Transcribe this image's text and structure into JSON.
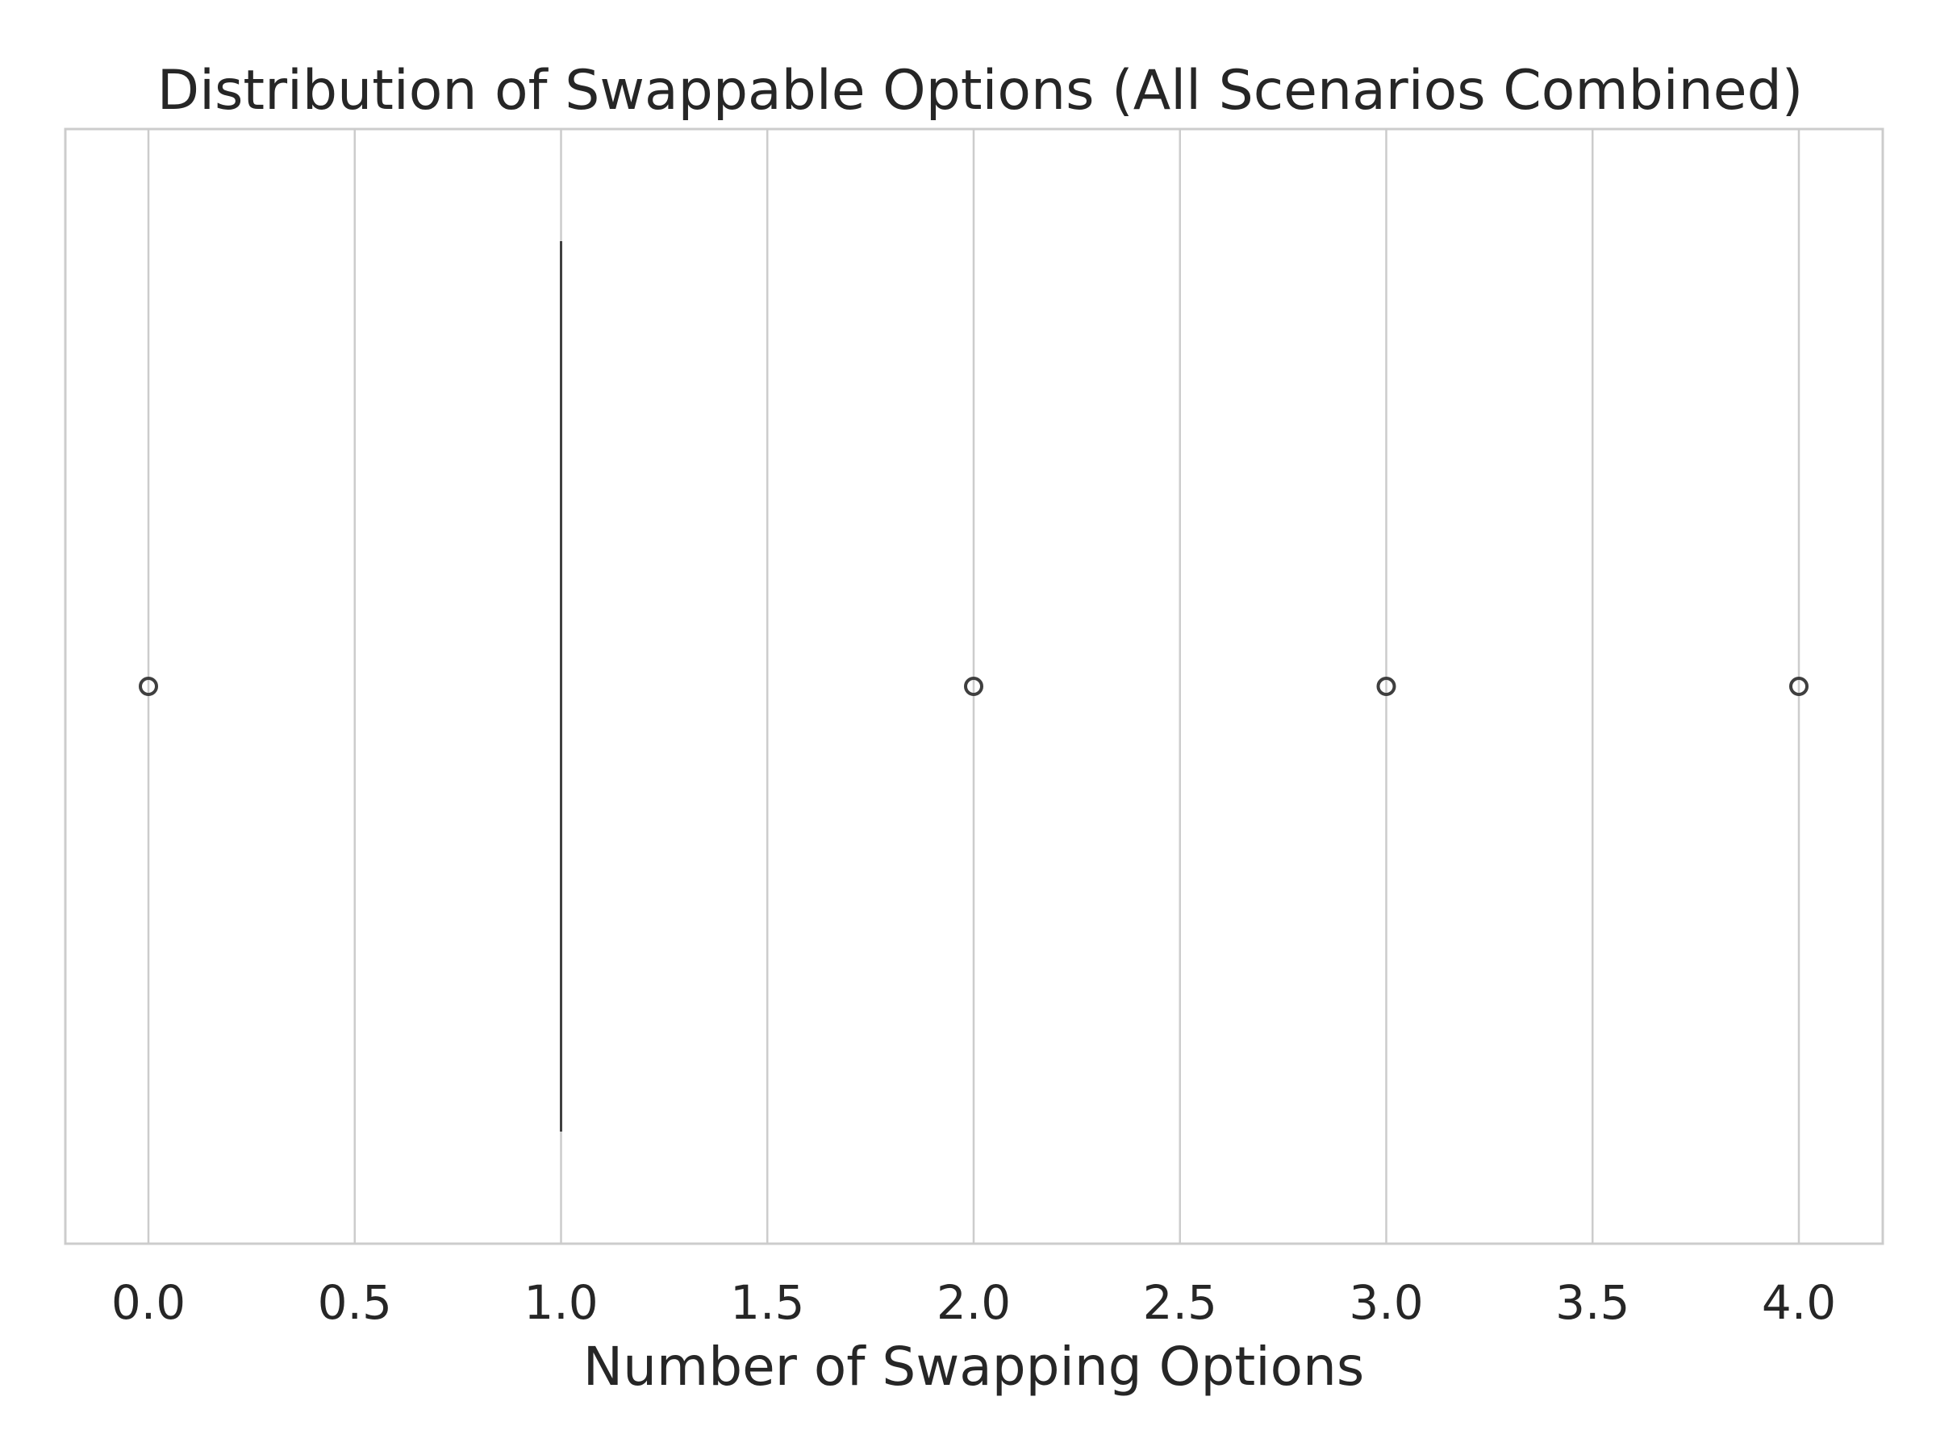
{
  "chart_data": {
    "type": "boxplot",
    "title": "Distribution of Swappable Options (All Scenarios Combined)",
    "xlabel": "Number of Swapping Options",
    "ylabel": "",
    "xlim": [
      -0.2,
      4.2
    ],
    "x_ticks": [
      0.0,
      0.5,
      1.0,
      1.5,
      2.0,
      2.5,
      3.0,
      3.5,
      4.0
    ],
    "x_tick_labels": [
      "0.0",
      "0.5",
      "1.0",
      "1.5",
      "2.0",
      "2.5",
      "3.0",
      "3.5",
      "4.0"
    ],
    "orientation": "horizontal",
    "grid": "vertical",
    "box": {
      "q1": 1.0,
      "median": 1.0,
      "q3": 1.0,
      "whisker_low": 1.0,
      "whisker_high": 1.0
    },
    "outliers": [
      0,
      2,
      3,
      4
    ]
  },
  "colors": {
    "background": "#ffffff",
    "grid": "#cccccc",
    "frame": "#cccccc",
    "box_line": "#3f3f3f",
    "text": "#262626"
  }
}
